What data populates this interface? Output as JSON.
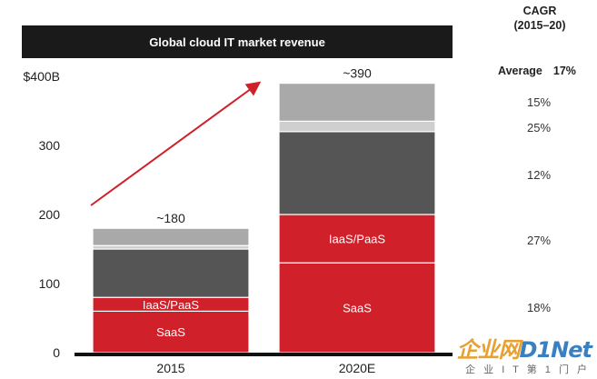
{
  "chart_data": {
    "type": "bar",
    "stacked": true,
    "title": "Global cloud IT market revenue",
    "categories": [
      "2015",
      "2020E"
    ],
    "y_ticks": [
      "0",
      "100",
      "200",
      "300",
      "$400B"
    ],
    "ylim": [
      0,
      400
    ],
    "totals": [
      "~180",
      "~390"
    ],
    "series": [
      {
        "name": "SaaS",
        "color": "#d0202a",
        "values": [
          60,
          130
        ],
        "label_color": "#ffffff"
      },
      {
        "name": "IaaS/PaaS",
        "color": "#d0202a",
        "values": [
          20,
          70
        ],
        "label_color": "#ffffff"
      },
      {
        "name": "",
        "color": "#555555",
        "values": [
          70,
          120
        ]
      },
      {
        "name": "",
        "color": "#cfcfcf",
        "values": [
          5,
          15
        ]
      },
      {
        "name": "",
        "color": "#a9a9a9",
        "values": [
          25,
          55
        ]
      }
    ],
    "grid": false,
    "growth_arrow": true
  },
  "cagr": {
    "header": "CAGR\n(2015–20)",
    "average_label": "Average",
    "average_value": "17%",
    "values": [
      "18%",
      "27%",
      "12%",
      "25%",
      "15%"
    ]
  },
  "watermark": {
    "brand_left": "企业网",
    "brand_right": "D1Net",
    "tagline": "企 业 I T 第 1 门 户"
  },
  "colors": {
    "accent": "#d0202a",
    "title_bar": "#1a1a1a"
  }
}
